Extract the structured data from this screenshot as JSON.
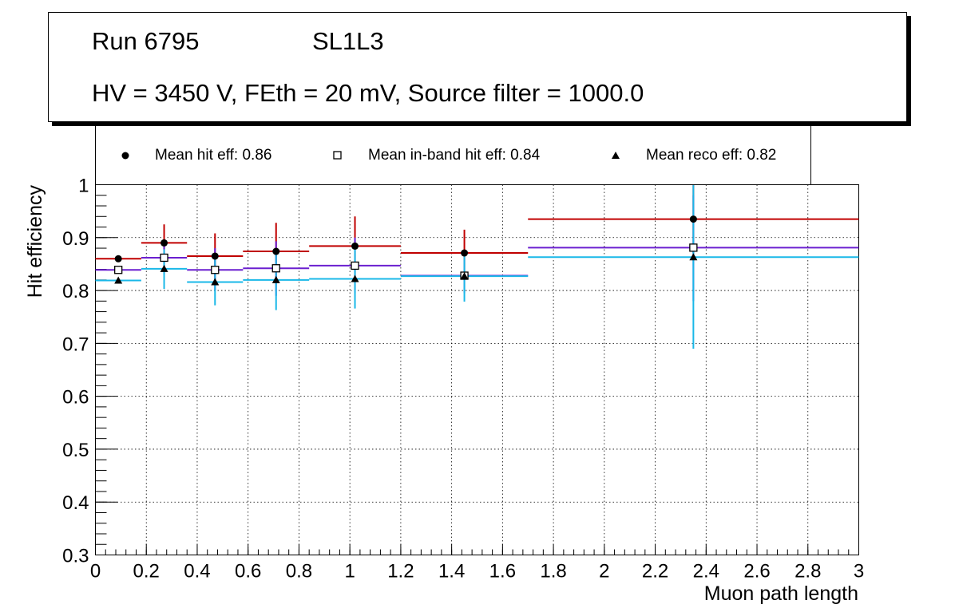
{
  "header": {
    "run": "Run 6795",
    "layer": "SL1L3",
    "conditions": "HV = 3450 V, FEth = 20 mV, Source filter = 1000.0"
  },
  "legend": {
    "hit": "Mean hit  eff: 0.86",
    "inband": "Mean in-band hit eff: 0.84",
    "reco": "Mean reco eff: 0.82"
  },
  "colors": {
    "hit": "#c00000",
    "inband": "#6a1fd0",
    "reco": "#1ab8e8",
    "grid": "#000000"
  },
  "chart_data": {
    "type": "scatter",
    "title": "Run 6795 SL1L3",
    "xlabel": "Muon path length",
    "ylabel": "Hit efficiency",
    "xlim": [
      0,
      3
    ],
    "ylim": [
      0.3,
      1
    ],
    "xticks": [
      0,
      0.2,
      0.4,
      0.6,
      0.8,
      1,
      1.2,
      1.4,
      1.6,
      1.8,
      2,
      2.2,
      2.4,
      2.6,
      2.8,
      3
    ],
    "xtick_labels": [
      "0",
      "0.2",
      "0.4",
      "0.6",
      "0.8",
      "1",
      "1.2",
      "1.4",
      "1.6",
      "1.8",
      "2",
      "2.2",
      "2.4",
      "2.6",
      "2.8",
      "3"
    ],
    "yticks": [
      0.3,
      0.4,
      0.5,
      0.6,
      0.7,
      0.8,
      0.9,
      1
    ],
    "ytick_labels": [
      "0.3",
      "0.4",
      "0.5",
      "0.6",
      "0.7",
      "0.8",
      "0.9",
      "1"
    ],
    "grid": true,
    "series": [
      {
        "name": "Mean hit eff",
        "key": "hit",
        "marker": "circle",
        "points": [
          {
            "x": 0.09,
            "xlo": 0.0,
            "xhi": 0.18,
            "y": 0.86,
            "ylo": 0.86,
            "yhi": 0.86
          },
          {
            "x": 0.27,
            "xlo": 0.18,
            "xhi": 0.36,
            "y": 0.89,
            "ylo": 0.855,
            "yhi": 0.925
          },
          {
            "x": 0.47,
            "xlo": 0.36,
            "xhi": 0.58,
            "y": 0.865,
            "ylo": 0.82,
            "yhi": 0.908
          },
          {
            "x": 0.71,
            "xlo": 0.58,
            "xhi": 0.84,
            "y": 0.874,
            "ylo": 0.82,
            "yhi": 0.928
          },
          {
            "x": 1.02,
            "xlo": 0.84,
            "xhi": 1.2,
            "y": 0.884,
            "ylo": 0.828,
            "yhi": 0.94
          },
          {
            "x": 1.45,
            "xlo": 1.2,
            "xhi": 1.7,
            "y": 0.871,
            "ylo": 0.828,
            "yhi": 0.915
          },
          {
            "x": 2.35,
            "xlo": 1.7,
            "xhi": 3.0,
            "y": 0.935,
            "ylo": 0.87,
            "yhi": 1.0
          }
        ]
      },
      {
        "name": "Mean in-band hit eff",
        "key": "inband",
        "marker": "square",
        "points": [
          {
            "x": 0.09,
            "xlo": 0.0,
            "xhi": 0.18,
            "y": 0.839,
            "ylo": 0.839,
            "yhi": 0.839
          },
          {
            "x": 0.27,
            "xlo": 0.18,
            "xhi": 0.36,
            "y": 0.862,
            "ylo": 0.83,
            "yhi": 0.895
          },
          {
            "x": 0.47,
            "xlo": 0.36,
            "xhi": 0.58,
            "y": 0.839,
            "ylo": 0.8,
            "yhi": 0.88
          },
          {
            "x": 0.71,
            "xlo": 0.58,
            "xhi": 0.84,
            "y": 0.842,
            "ylo": 0.79,
            "yhi": 0.893
          },
          {
            "x": 1.02,
            "xlo": 0.84,
            "xhi": 1.2,
            "y": 0.847,
            "ylo": 0.795,
            "yhi": 0.9
          },
          {
            "x": 1.45,
            "xlo": 1.2,
            "xhi": 1.7,
            "y": 0.828,
            "ylo": 0.795,
            "yhi": 0.86
          },
          {
            "x": 2.35,
            "xlo": 1.7,
            "xhi": 3.0,
            "y": 0.881,
            "ylo": 0.78,
            "yhi": 0.98
          }
        ]
      },
      {
        "name": "Mean reco eff",
        "key": "reco",
        "marker": "triangle",
        "points": [
          {
            "x": 0.09,
            "xlo": 0.0,
            "xhi": 0.18,
            "y": 0.819,
            "ylo": 0.819,
            "yhi": 0.819
          },
          {
            "x": 0.27,
            "xlo": 0.18,
            "xhi": 0.36,
            "y": 0.841,
            "ylo": 0.803,
            "yhi": 0.878
          },
          {
            "x": 0.47,
            "xlo": 0.36,
            "xhi": 0.58,
            "y": 0.816,
            "ylo": 0.772,
            "yhi": 0.86
          },
          {
            "x": 0.71,
            "xlo": 0.58,
            "xhi": 0.84,
            "y": 0.82,
            "ylo": 0.763,
            "yhi": 0.877
          },
          {
            "x": 1.02,
            "xlo": 0.84,
            "xhi": 1.2,
            "y": 0.822,
            "ylo": 0.766,
            "yhi": 0.878
          },
          {
            "x": 1.45,
            "xlo": 1.2,
            "xhi": 1.7,
            "y": 0.827,
            "ylo": 0.779,
            "yhi": 0.875
          },
          {
            "x": 2.35,
            "xlo": 1.7,
            "xhi": 3.0,
            "y": 0.863,
            "ylo": 0.69,
            "yhi": 1.0
          }
        ]
      }
    ]
  }
}
